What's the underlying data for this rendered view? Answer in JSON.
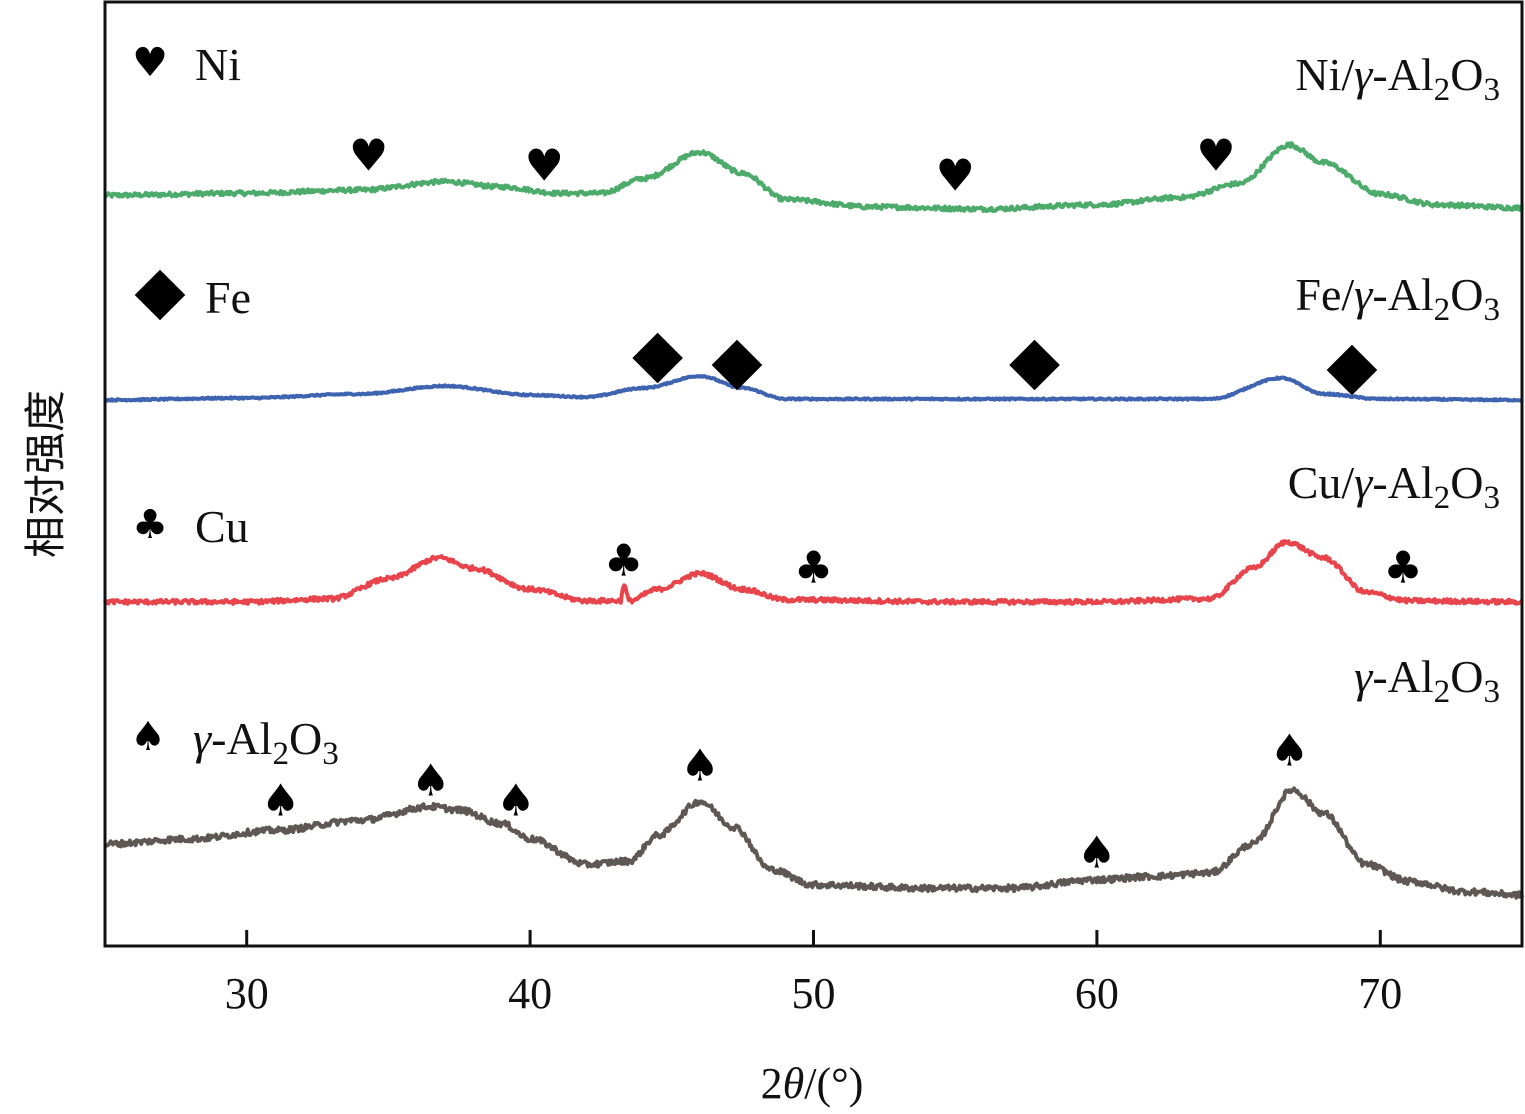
{
  "chart_data": {
    "type": "line",
    "xlabel_parts": [
      "2",
      "θ",
      "/(°)"
    ],
    "ylabel": "相对强度",
    "xlim": [
      25,
      75
    ],
    "xticks": [
      30,
      40,
      50,
      60,
      70
    ],
    "grid": false,
    "series": [
      {
        "name": "Ni/γ-Al2O3",
        "label_parts": [
          [
            "Ni/",
            ""
          ],
          [
            "γ",
            "italic"
          ],
          [
            "-Al",
            ""
          ],
          [
            "2",
            "sub"
          ],
          [
            "O",
            ""
          ],
          [
            "3",
            "sub"
          ]
        ],
        "color": "#4caa6a",
        "points": [
          [
            25,
            0.14
          ],
          [
            30,
            0.16
          ],
          [
            34,
            0.19
          ],
          [
            37,
            0.27
          ],
          [
            39,
            0.22
          ],
          [
            41,
            0.16
          ],
          [
            42.5,
            0.16
          ],
          [
            44,
            0.3
          ],
          [
            46,
            0.55
          ],
          [
            47.5,
            0.35
          ],
          [
            49,
            0.1
          ],
          [
            52,
            0.03
          ],
          [
            56,
            0.01
          ],
          [
            60,
            0.05
          ],
          [
            63,
            0.12
          ],
          [
            65,
            0.25
          ],
          [
            66.8,
            0.62
          ],
          [
            68,
            0.45
          ],
          [
            70,
            0.15
          ],
          [
            72,
            0.05
          ],
          [
            75,
            0.02
          ]
        ],
        "noise": 0.04,
        "markers": {
          "symbol": "heart",
          "x": [
            34.3,
            40.5,
            55,
            64.2
          ]
        }
      },
      {
        "name": "Fe/γ-Al2O3",
        "label_parts": [
          [
            "Fe/",
            ""
          ],
          [
            "γ",
            "italic"
          ],
          [
            "-Al",
            ""
          ],
          [
            "2",
            "sub"
          ],
          [
            "O",
            ""
          ],
          [
            "3",
            "sub"
          ]
        ],
        "color": "#3e63b0",
        "points": [
          [
            25,
            0.02
          ],
          [
            30,
            0.04
          ],
          [
            34,
            0.08
          ],
          [
            37,
            0.16
          ],
          [
            40,
            0.07
          ],
          [
            42,
            0.05
          ],
          [
            44,
            0.14
          ],
          [
            46,
            0.26
          ],
          [
            47.5,
            0.14
          ],
          [
            49,
            0.03
          ],
          [
            55,
            0.03
          ],
          [
            60,
            0.03
          ],
          [
            64,
            0.03
          ],
          [
            66.5,
            0.24
          ],
          [
            68,
            0.08
          ],
          [
            70,
            0.03
          ],
          [
            75,
            0.02
          ]
        ],
        "noise": 0.015,
        "markers": {
          "symbol": "diamond",
          "x": [
            44.5,
            47.3,
            57.8,
            69
          ]
        }
      },
      {
        "name": "Cu/γ-Al2O3",
        "label_parts": [
          [
            "Cu/",
            ""
          ],
          [
            "γ",
            "italic"
          ],
          [
            "-Al",
            ""
          ],
          [
            "2",
            "sub"
          ],
          [
            "O",
            ""
          ],
          [
            "3",
            "sub"
          ]
        ],
        "color": "#e8444c",
        "points": [
          [
            25,
            0.03
          ],
          [
            30,
            0.03
          ],
          [
            33,
            0.06
          ],
          [
            35,
            0.25
          ],
          [
            36.8,
            0.45
          ],
          [
            38,
            0.35
          ],
          [
            40,
            0.15
          ],
          [
            42,
            0.04
          ],
          [
            43.2,
            0.04
          ],
          [
            43.3,
            0.2
          ],
          [
            43.5,
            0.04
          ],
          [
            44.5,
            0.15
          ],
          [
            46,
            0.3
          ],
          [
            47.5,
            0.15
          ],
          [
            49,
            0.05
          ],
          [
            55,
            0.03
          ],
          [
            60,
            0.03
          ],
          [
            64,
            0.06
          ],
          [
            65.5,
            0.35
          ],
          [
            66.7,
            0.6
          ],
          [
            68,
            0.45
          ],
          [
            69.5,
            0.12
          ],
          [
            71,
            0.04
          ],
          [
            75,
            0.03
          ]
        ],
        "noise": 0.04,
        "markers": {
          "symbol": "club",
          "x": [
            43.3,
            50,
            70.8
          ]
        }
      },
      {
        "name": "γ-Al2O3",
        "label_parts": [
          [
            "γ",
            "italic"
          ],
          [
            "-Al",
            ""
          ],
          [
            "2",
            "sub"
          ],
          [
            "O",
            ""
          ],
          [
            "3",
            "sub"
          ]
        ],
        "color": "#5e5754",
        "points": [
          [
            25,
            0.3
          ],
          [
            28,
            0.33
          ],
          [
            31,
            0.38
          ],
          [
            34,
            0.44
          ],
          [
            36.5,
            0.52
          ],
          [
            37.5,
            0.5
          ],
          [
            39,
            0.42
          ],
          [
            40,
            0.33
          ],
          [
            42,
            0.18
          ],
          [
            43.5,
            0.2
          ],
          [
            44.5,
            0.35
          ],
          [
            46,
            0.55
          ],
          [
            47.2,
            0.4
          ],
          [
            48.5,
            0.15
          ],
          [
            50,
            0.06
          ],
          [
            54,
            0.04
          ],
          [
            57,
            0.04
          ],
          [
            60,
            0.09
          ],
          [
            62,
            0.11
          ],
          [
            64,
            0.13
          ],
          [
            65.5,
            0.3
          ],
          [
            66.9,
            0.62
          ],
          [
            68,
            0.48
          ],
          [
            69.5,
            0.18
          ],
          [
            71,
            0.08
          ],
          [
            73,
            0.02
          ],
          [
            75,
            0.0
          ]
        ],
        "noise": 0.035,
        "markers": {
          "symbol": "spade",
          "x": [
            31.2,
            36.5,
            39.5,
            46,
            60,
            66.8
          ]
        }
      }
    ],
    "legend": [
      {
        "symbol": "heart",
        "label_parts": [
          [
            "Ni",
            ""
          ]
        ]
      },
      {
        "symbol": "diamond",
        "label_parts": [
          [
            "Fe",
            ""
          ]
        ]
      },
      {
        "symbol": "club",
        "label_parts": [
          [
            "Cu",
            ""
          ]
        ]
      },
      {
        "symbol": "spade",
        "label_parts": [
          [
            "γ",
            "italic"
          ],
          [
            "-Al",
            ""
          ],
          [
            "2",
            "sub"
          ],
          [
            "O",
            ""
          ],
          [
            "3",
            "sub"
          ]
        ]
      }
    ]
  }
}
